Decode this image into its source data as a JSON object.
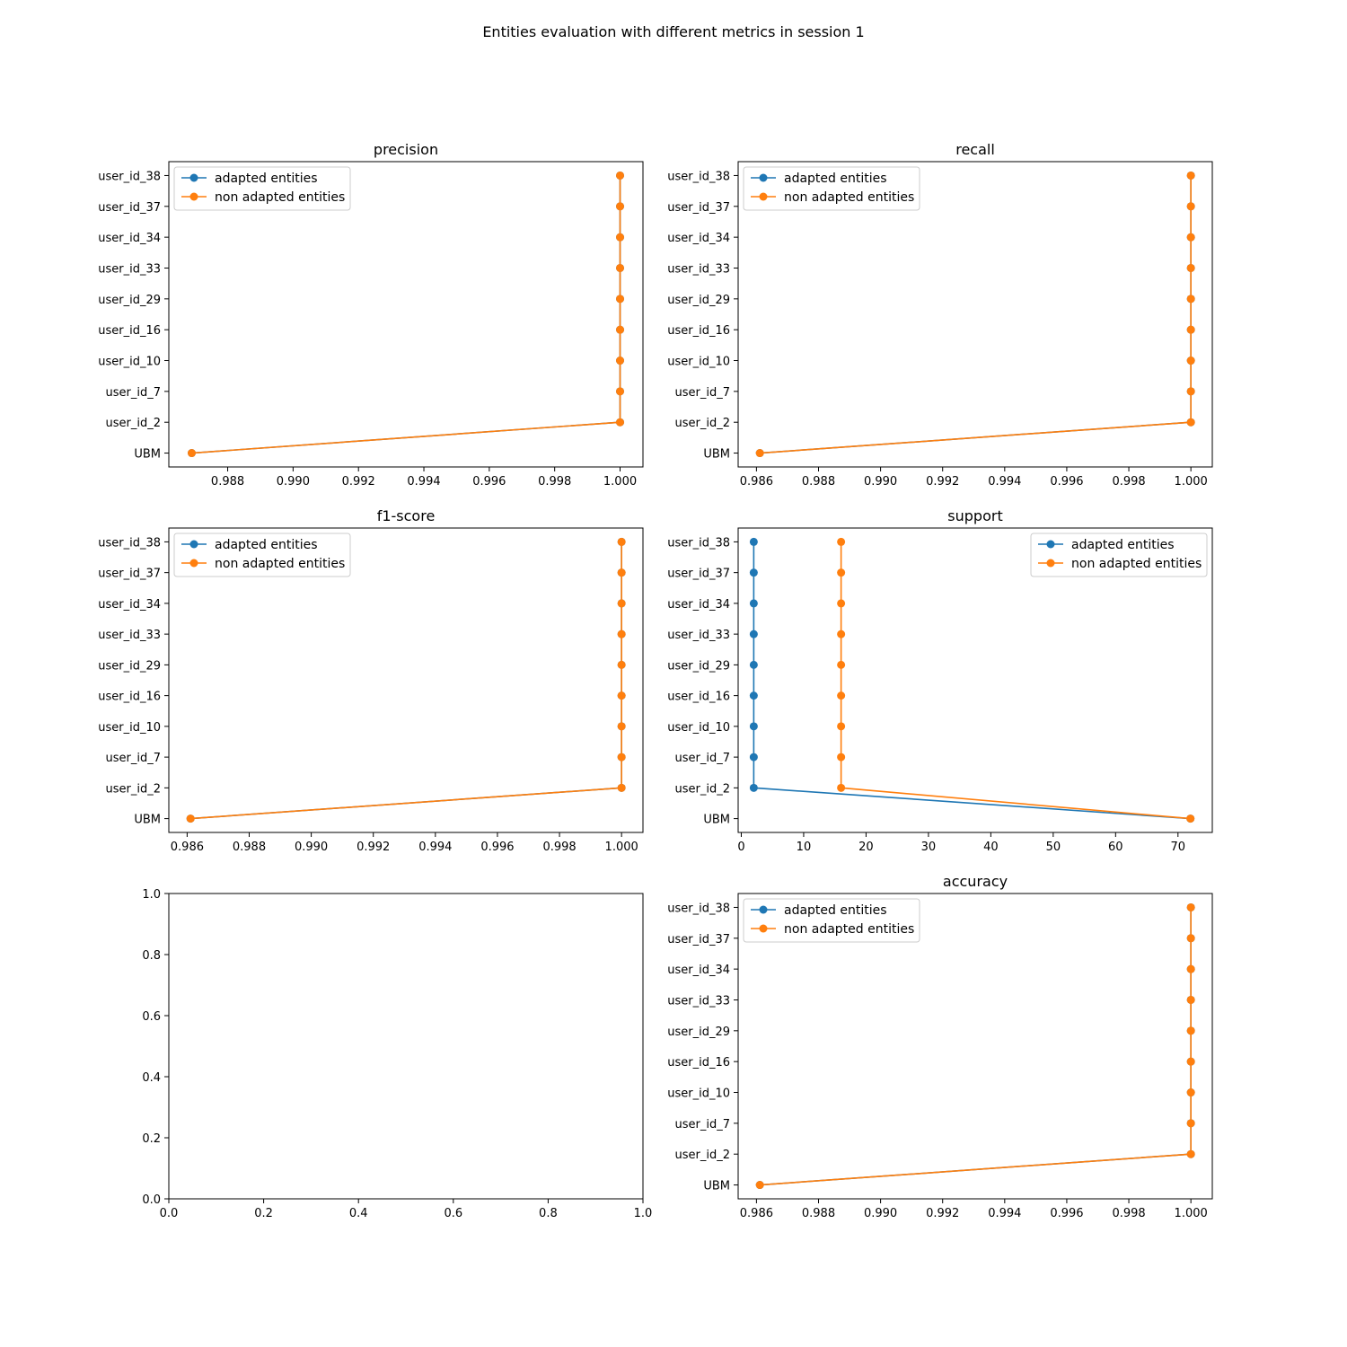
{
  "figure": {
    "title": "Entities evaluation with different metrics in session 1"
  },
  "colors": {
    "adapted": "#1f77b4",
    "non_adapted": "#ff7f0e"
  },
  "chart_data": [
    {
      "type": "line",
      "title": "precision",
      "categories": [
        "UBM",
        "user_id_2",
        "user_id_7",
        "user_id_10",
        "user_id_16",
        "user_id_29",
        "user_id_33",
        "user_id_34",
        "user_id_37",
        "user_id_38"
      ],
      "xlim": [
        0.9862,
        1.0007
      ],
      "xticks": [
        0.988,
        0.99,
        0.992,
        0.994,
        0.996,
        0.998,
        1.0
      ],
      "xtick_labels": [
        "0.988",
        "0.990",
        "0.992",
        "0.994",
        "0.996",
        "0.998",
        "1.000"
      ],
      "legend": "upper-left",
      "series": [
        {
          "name": "adapted entities",
          "color": "#1f77b4",
          "values": [
            0.9869,
            1,
            1,
            1,
            1,
            1,
            1,
            1,
            1,
            1
          ]
        },
        {
          "name": "non adapted entities",
          "color": "#ff7f0e",
          "values": [
            0.9869,
            1,
            1,
            1,
            1,
            1,
            1,
            1,
            1,
            1
          ]
        }
      ]
    },
    {
      "type": "line",
      "title": "recall",
      "categories": [
        "UBM",
        "user_id_2",
        "user_id_7",
        "user_id_10",
        "user_id_16",
        "user_id_29",
        "user_id_33",
        "user_id_34",
        "user_id_37",
        "user_id_38"
      ],
      "xlim": [
        0.98541,
        1.00069
      ],
      "xticks": [
        0.986,
        0.988,
        0.99,
        0.992,
        0.994,
        0.996,
        0.998,
        1.0
      ],
      "xtick_labels": [
        "0.986",
        "0.988",
        "0.990",
        "0.992",
        "0.994",
        "0.996",
        "0.998",
        "1.000"
      ],
      "legend": "upper-left",
      "series": [
        {
          "name": "adapted entities",
          "color": "#1f77b4",
          "values": [
            0.98611,
            1,
            1,
            1,
            1,
            1,
            1,
            1,
            1,
            1
          ]
        },
        {
          "name": "non adapted entities",
          "color": "#ff7f0e",
          "values": [
            0.98611,
            1,
            1,
            1,
            1,
            1,
            1,
            1,
            1,
            1
          ]
        }
      ]
    },
    {
      "type": "line",
      "title": "f1-score",
      "categories": [
        "UBM",
        "user_id_2",
        "user_id_7",
        "user_id_10",
        "user_id_16",
        "user_id_29",
        "user_id_33",
        "user_id_34",
        "user_id_37",
        "user_id_38"
      ],
      "xlim": [
        0.98541,
        1.00069
      ],
      "xticks": [
        0.986,
        0.988,
        0.99,
        0.992,
        0.994,
        0.996,
        0.998,
        1.0
      ],
      "xtick_labels": [
        "0.986",
        "0.988",
        "0.990",
        "0.992",
        "0.994",
        "0.996",
        "0.998",
        "1.000"
      ],
      "legend": "upper-left",
      "series": [
        {
          "name": "adapted entities",
          "color": "#1f77b4",
          "values": [
            0.98611,
            1,
            1,
            1,
            1,
            1,
            1,
            1,
            1,
            1
          ]
        },
        {
          "name": "non adapted entities",
          "color": "#ff7f0e",
          "values": [
            0.98611,
            1,
            1,
            1,
            1,
            1,
            1,
            1,
            1,
            1
          ]
        }
      ]
    },
    {
      "type": "line",
      "title": "support",
      "categories": [
        "UBM",
        "user_id_2",
        "user_id_7",
        "user_id_10",
        "user_id_16",
        "user_id_29",
        "user_id_33",
        "user_id_34",
        "user_id_37",
        "user_id_38"
      ],
      "xlim": [
        -0.5,
        75.5
      ],
      "xticks": [
        0,
        10,
        20,
        30,
        40,
        50,
        60,
        70
      ],
      "xtick_labels": [
        "0",
        "10",
        "20",
        "30",
        "40",
        "50",
        "60",
        "70"
      ],
      "legend": "upper-right",
      "series": [
        {
          "name": "adapted entities",
          "color": "#1f77b4",
          "values": [
            72,
            2,
            2,
            2,
            2,
            2,
            2,
            2,
            2,
            2
          ]
        },
        {
          "name": "non adapted entities",
          "color": "#ff7f0e",
          "values": [
            72,
            16,
            16,
            16,
            16,
            16,
            16,
            16,
            16,
            16
          ]
        }
      ]
    },
    {
      "type": "empty",
      "title": "",
      "xlim": [
        0,
        1
      ],
      "ylim": [
        0,
        1
      ],
      "xticks": [
        0.0,
        0.2,
        0.4,
        0.6,
        0.8,
        1.0
      ],
      "xtick_labels": [
        "0.0",
        "0.2",
        "0.4",
        "0.6",
        "0.8",
        "1.0"
      ],
      "yticks": [
        0.0,
        0.2,
        0.4,
        0.6,
        0.8,
        1.0
      ],
      "ytick_labels": [
        "0.0",
        "0.2",
        "0.4",
        "0.6",
        "0.8",
        "1.0"
      ]
    },
    {
      "type": "line",
      "title": "accuracy",
      "categories": [
        "UBM",
        "user_id_2",
        "user_id_7",
        "user_id_10",
        "user_id_16",
        "user_id_29",
        "user_id_33",
        "user_id_34",
        "user_id_37",
        "user_id_38"
      ],
      "xlim": [
        0.98541,
        1.00069
      ],
      "xticks": [
        0.986,
        0.988,
        0.99,
        0.992,
        0.994,
        0.996,
        0.998,
        1.0
      ],
      "xtick_labels": [
        "0.986",
        "0.988",
        "0.990",
        "0.992",
        "0.994",
        "0.996",
        "0.998",
        "1.000"
      ],
      "legend": "upper-left",
      "series": [
        {
          "name": "adapted entities",
          "color": "#1f77b4",
          "values": [
            0.98611,
            1,
            1,
            1,
            1,
            1,
            1,
            1,
            1,
            1
          ]
        },
        {
          "name": "non adapted entities",
          "color": "#ff7f0e",
          "values": [
            0.98611,
            1,
            1,
            1,
            1,
            1,
            1,
            1,
            1,
            1
          ]
        }
      ]
    }
  ]
}
